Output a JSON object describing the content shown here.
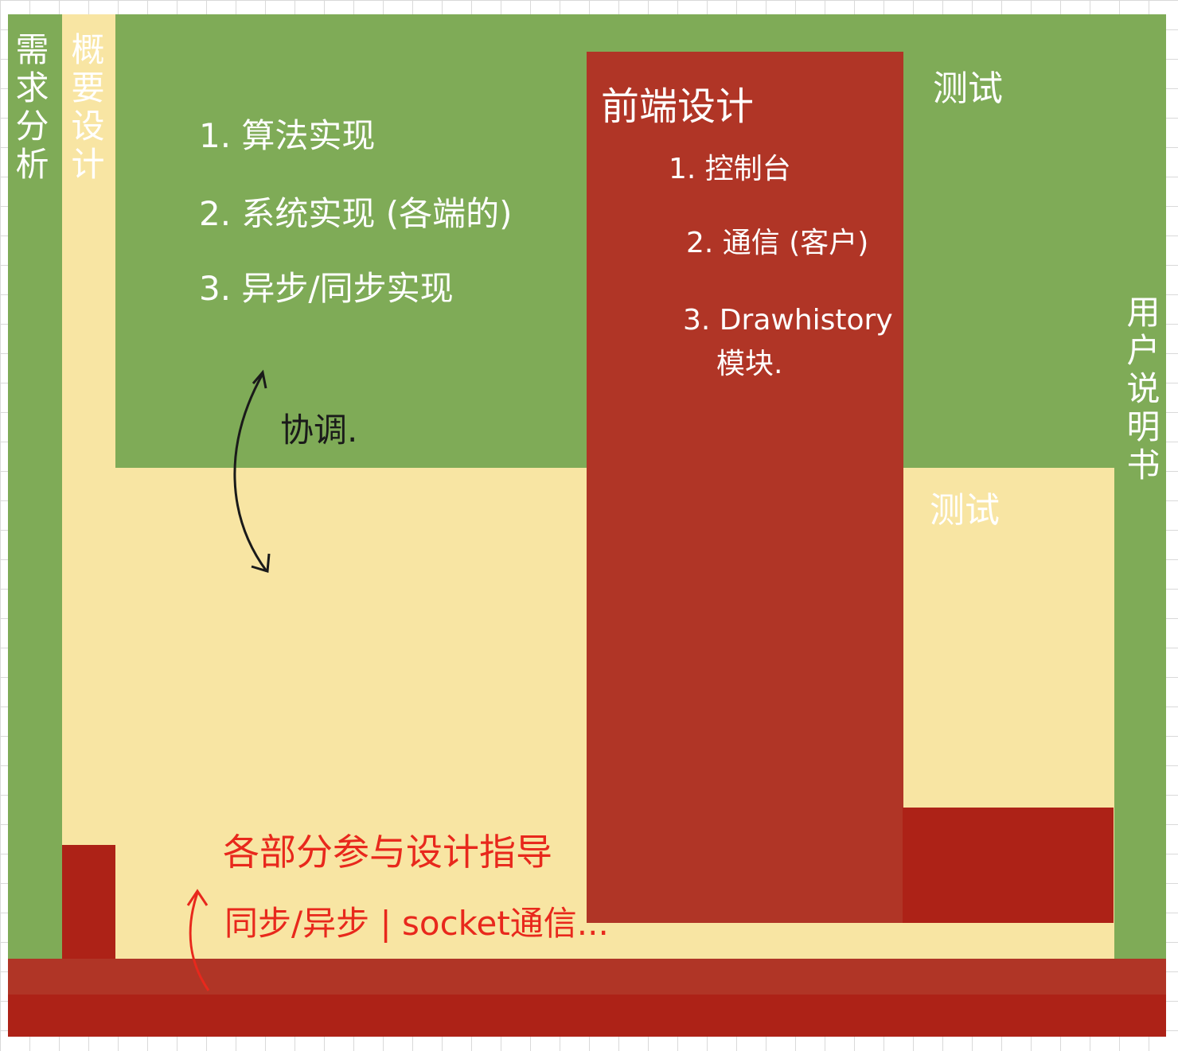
{
  "colors": {
    "green": "#7fab57",
    "cream": "#f8e5a3",
    "red": "#b03526",
    "deep_red": "#ad2217",
    "ink_white": "#ffffff",
    "ink_red": "#e8281c",
    "ink_dark": "#1a1a1a"
  },
  "phases": {
    "requirements": "需求分析",
    "outline_design": "概要设计",
    "test_top": "测试",
    "test_mid": "测试",
    "user_manual": "用户说明书"
  },
  "backend": {
    "items": [
      "1. 算法实现",
      "2. 系统实现 (各端的)",
      "3. 异步/同步实现"
    ]
  },
  "frontend": {
    "title": "前端设计",
    "items": [
      "1. 控制台",
      "2. 通信 (客户)",
      "3. Drawhistory",
      "模块."
    ]
  },
  "coordination": "协调.",
  "guidance": {
    "line1": "各部分参与设计指导",
    "line2": "同步/异步 | socket通信..."
  }
}
